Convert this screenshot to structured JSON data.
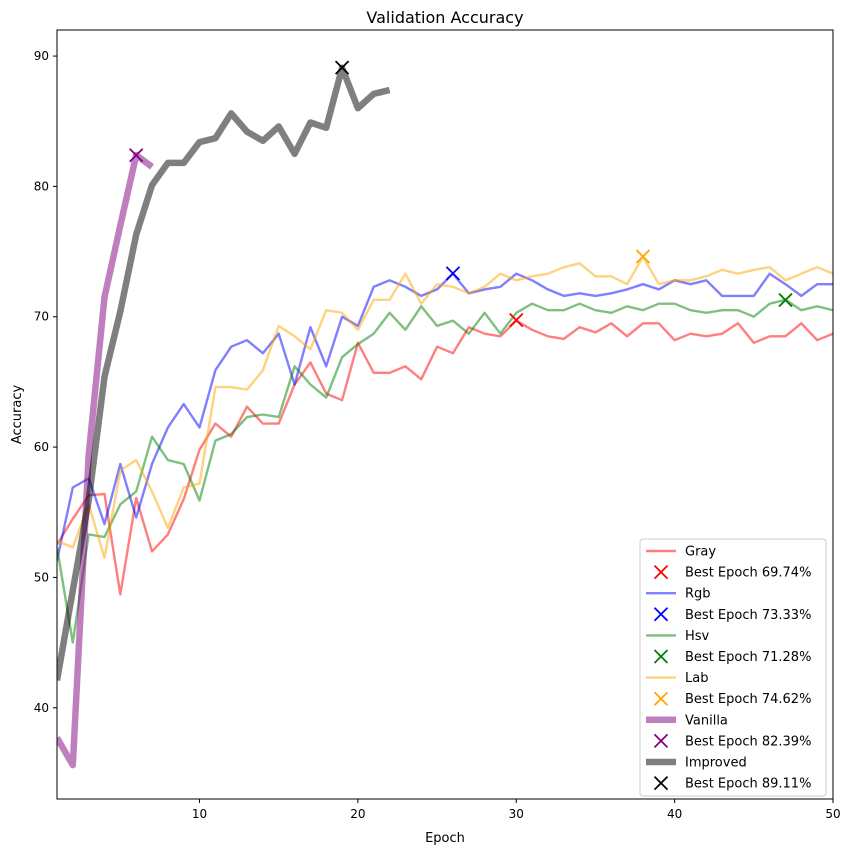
{
  "chart_data": {
    "type": "line",
    "title": "Validation Accuracy",
    "xlabel": "Epoch",
    "ylabel": "Accuracy",
    "xlim": [
      1,
      50
    ],
    "ylim": [
      33,
      92
    ],
    "xticks": [
      10,
      20,
      30,
      40,
      50
    ],
    "yticks": [
      40,
      50,
      60,
      70,
      80,
      90
    ],
    "grid": false,
    "legend_position": "lower-right",
    "series": [
      {
        "name": "Gray",
        "color": "#ff0000",
        "opacity": 0.5,
        "width": 2.4,
        "x": [
          1,
          2,
          3,
          4,
          5,
          6,
          7,
          8,
          9,
          10,
          11,
          12,
          13,
          14,
          15,
          16,
          17,
          18,
          19,
          20,
          21,
          22,
          23,
          24,
          25,
          26,
          27,
          28,
          29,
          30,
          31,
          32,
          33,
          34,
          35,
          36,
          37,
          38,
          39,
          40,
          41,
          42,
          43,
          44,
          45,
          46,
          47,
          48,
          49,
          50
        ],
        "y": [
          52.5,
          54.5,
          56.3,
          56.4,
          48.7,
          56.1,
          52.0,
          53.3,
          56.0,
          59.8,
          61.8,
          60.8,
          63.1,
          61.8,
          61.8,
          64.8,
          66.5,
          64.1,
          63.6,
          68.0,
          65.7,
          65.7,
          66.2,
          65.2,
          67.7,
          67.2,
          69.2,
          68.7,
          68.5,
          69.7,
          69.0,
          68.5,
          68.3,
          69.2,
          68.8,
          69.5,
          68.5,
          69.5,
          69.5,
          68.2,
          68.7,
          68.5,
          68.7,
          69.5,
          68.0,
          68.5,
          68.5,
          69.5,
          68.2,
          68.7
        ],
        "best_label": "Best Epoch 69.74%",
        "best_x": 30,
        "best_y": 69.74,
        "marker_color": "#ff0000"
      },
      {
        "name": "Rgb",
        "color": "#0000ff",
        "opacity": 0.5,
        "width": 2.4,
        "x": [
          1,
          2,
          3,
          4,
          5,
          6,
          7,
          8,
          9,
          10,
          11,
          12,
          13,
          14,
          15,
          16,
          17,
          18,
          19,
          20,
          21,
          22,
          23,
          24,
          25,
          26,
          27,
          28,
          29,
          30,
          31,
          32,
          33,
          34,
          35,
          36,
          37,
          38,
          39,
          40,
          41,
          42,
          43,
          44,
          45,
          46,
          47,
          48,
          49,
          50
        ],
        "y": [
          51.3,
          56.9,
          57.6,
          54.1,
          58.7,
          54.6,
          58.7,
          61.5,
          63.3,
          61.5,
          65.9,
          67.7,
          68.2,
          67.2,
          68.7,
          64.8,
          69.2,
          66.2,
          70.0,
          69.3,
          72.3,
          72.8,
          72.3,
          71.6,
          72.1,
          73.3,
          71.8,
          72.1,
          72.3,
          73.3,
          72.8,
          72.1,
          71.6,
          71.8,
          71.6,
          71.8,
          72.1,
          72.5,
          72.1,
          72.8,
          72.5,
          72.8,
          71.6,
          71.6,
          71.6,
          73.3,
          72.5,
          71.6,
          72.5,
          72.5
        ],
        "best_label": "Best Epoch 73.33%",
        "best_x": 26,
        "best_y": 73.33,
        "marker_color": "#0000ff"
      },
      {
        "name": "Hsv",
        "color": "#008000",
        "opacity": 0.5,
        "width": 2.4,
        "x": [
          1,
          2,
          3,
          4,
          5,
          6,
          7,
          8,
          9,
          10,
          11,
          12,
          13,
          14,
          15,
          16,
          17,
          18,
          19,
          20,
          21,
          22,
          23,
          24,
          25,
          26,
          27,
          28,
          29,
          30,
          31,
          32,
          33,
          34,
          35,
          36,
          37,
          38,
          39,
          40,
          41,
          42,
          43,
          44,
          45,
          46,
          47,
          48,
          49,
          50
        ],
        "y": [
          52.3,
          45.0,
          53.3,
          53.1,
          55.6,
          56.6,
          60.8,
          59.0,
          58.7,
          55.9,
          60.5,
          61.0,
          62.3,
          62.5,
          62.3,
          66.2,
          64.8,
          63.8,
          66.9,
          67.9,
          68.7,
          70.3,
          69.0,
          70.8,
          69.3,
          69.7,
          68.7,
          70.3,
          68.7,
          70.3,
          71.0,
          70.5,
          70.5,
          71.0,
          70.5,
          70.3,
          70.8,
          70.5,
          71.0,
          71.0,
          70.5,
          70.3,
          70.5,
          70.5,
          70.0,
          71.0,
          71.3,
          70.5,
          70.8,
          70.5
        ],
        "best_label": "Best Epoch 71.28%",
        "best_x": 47,
        "best_y": 71.28,
        "marker_color": "#008000"
      },
      {
        "name": "Lab",
        "color": "#ffa500",
        "opacity": 0.5,
        "width": 2.4,
        "x": [
          1,
          2,
          3,
          4,
          5,
          6,
          7,
          8,
          9,
          10,
          11,
          12,
          13,
          14,
          15,
          16,
          17,
          18,
          19,
          20,
          21,
          22,
          23,
          24,
          25,
          26,
          27,
          28,
          29,
          30,
          31,
          32,
          33,
          34,
          35,
          36,
          37,
          38,
          39,
          40,
          41,
          42,
          43,
          44,
          45,
          46,
          47,
          48,
          49,
          50
        ],
        "y": [
          52.8,
          52.3,
          55.6,
          51.5,
          58.2,
          59.0,
          56.6,
          53.8,
          56.9,
          57.2,
          64.6,
          64.6,
          64.4,
          65.9,
          69.3,
          68.5,
          67.5,
          70.5,
          70.3,
          69.0,
          71.3,
          71.3,
          73.3,
          71.0,
          72.5,
          72.3,
          71.8,
          72.3,
          73.3,
          72.8,
          73.1,
          73.3,
          73.8,
          74.1,
          73.1,
          73.1,
          72.5,
          74.6,
          72.5,
          72.8,
          72.8,
          73.1,
          73.6,
          73.3,
          73.6,
          73.8,
          72.8,
          73.3,
          73.8,
          73.3
        ],
        "best_label": "Best Epoch 74.62%",
        "best_x": 38,
        "best_y": 74.62,
        "marker_color": "#ffa500"
      },
      {
        "name": "Vanilla",
        "color": "#800080",
        "opacity": 0.5,
        "width": 6.5,
        "x": [
          1,
          2,
          3,
          4,
          5,
          6,
          7
        ],
        "y": [
          37.7,
          35.6,
          59.4,
          71.5,
          77.0,
          82.4,
          81.5
        ],
        "best_label": "Best Epoch 82.39%",
        "best_x": 6,
        "best_y": 82.39,
        "marker_color": "#800080"
      },
      {
        "name": "Improved",
        "color": "#000000",
        "opacity": 0.5,
        "width": 6.5,
        "x": [
          1,
          2,
          3,
          4,
          5,
          6,
          7,
          8,
          9,
          10,
          11,
          12,
          13,
          14,
          15,
          16,
          17,
          18,
          19,
          20,
          21,
          22
        ],
        "y": [
          42.1,
          49.0,
          55.9,
          65.4,
          70.4,
          76.3,
          80.1,
          81.8,
          81.8,
          83.4,
          83.7,
          85.6,
          84.2,
          83.5,
          84.6,
          82.5,
          84.9,
          84.5,
          89.1,
          86.0,
          87.1,
          87.4
        ],
        "best_label": "Best Epoch 89.11%",
        "best_x": 19,
        "best_y": 89.11,
        "marker_color": "#000000"
      }
    ]
  }
}
